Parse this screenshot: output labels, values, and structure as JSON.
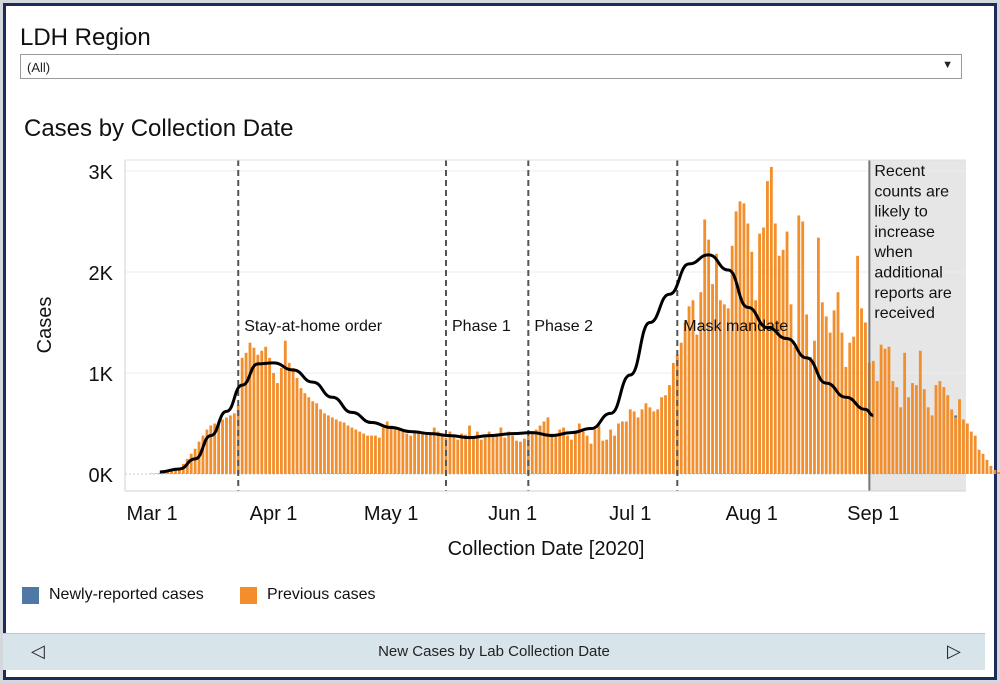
{
  "filter": {
    "title": "LDH Region",
    "value": "(All)"
  },
  "chart_title": "Cases by Collection Date",
  "legend": [
    {
      "label": "Newly-reported cases",
      "color": "#4e79a7"
    },
    {
      "label": "Previous cases",
      "color": "#f28e2b"
    }
  ],
  "footer": {
    "label": "New Cases by Lab Collection Date",
    "prev_icon": "triangle-left-icon",
    "next_icon": "triangle-right-icon"
  },
  "chart_data": {
    "type": "bar",
    "title": "Cases by Collection Date",
    "xlabel": "Collection Date [2020]",
    "ylabel": "Cases",
    "x_start": "2020-03-01",
    "x_end": "2020-09-30",
    "ylim": [
      0,
      3000
    ],
    "y_ticks": [
      0,
      1000,
      2000,
      3000
    ],
    "y_tick_labels": [
      "0K",
      "1K",
      "2K",
      "3K"
    ],
    "x_ticks": [
      {
        "date": "2020-03-01",
        "label": "Mar 1"
      },
      {
        "date": "2020-04-01",
        "label": "Apr 1"
      },
      {
        "date": "2020-05-01",
        "label": "May 1"
      },
      {
        "date": "2020-06-01",
        "label": "Jun 1"
      },
      {
        "date": "2020-07-01",
        "label": "Jul 1"
      },
      {
        "date": "2020-08-01",
        "label": "Aug 1"
      },
      {
        "date": "2020-09-01",
        "label": "Sep 1"
      }
    ],
    "grid": true,
    "colors": {
      "previous": "#f28e2b",
      "new": "#4e79a7",
      "average": "#000000",
      "recent_shade": "#e6e6e6",
      "phase_line": "#555555"
    },
    "annotations": [
      {
        "date": "2020-03-23",
        "label": "Stay-at-home order"
      },
      {
        "date": "2020-05-15",
        "label": "Phase 1"
      },
      {
        "date": "2020-06-05",
        "label": "Phase 2"
      },
      {
        "date": "2020-07-13",
        "label": "Mask mandate"
      }
    ],
    "recent_period": {
      "start": "2020-08-31",
      "label_lines": [
        "Recent",
        "counts are",
        "likely to",
        "increase",
        "when",
        "additional",
        "reports are",
        "received"
      ]
    },
    "first_date": "2020-03-01",
    "series": [
      {
        "name": "Previous cases",
        "values": [
          5,
          5,
          10,
          15,
          20,
          30,
          40,
          60,
          100,
          150,
          200,
          250,
          320,
          380,
          440,
          480,
          500,
          520,
          540,
          560,
          580,
          600,
          680,
          1150,
          1200,
          1300,
          1250,
          1180,
          1220,
          1260,
          1150,
          1000,
          900,
          1050,
          1320,
          1100,
          1050,
          950,
          850,
          800,
          760,
          720,
          700,
          640,
          600,
          580,
          560,
          540,
          520,
          510,
          480,
          460,
          440,
          420,
          400,
          380,
          380,
          380,
          360,
          460,
          520,
          480,
          450,
          440,
          420,
          400,
          380,
          420,
          430,
          400,
          390,
          400,
          460,
          420,
          380,
          360,
          420,
          380,
          340,
          400,
          390,
          480,
          360,
          420,
          340,
          380,
          420,
          390,
          400,
          460,
          360,
          420,
          380,
          330,
          320,
          350,
          380,
          400,
          440,
          480,
          520,
          560,
          400,
          380,
          440,
          460,
          380,
          340,
          420,
          500,
          420,
          380,
          300,
          440,
          480,
          330,
          340,
          440,
          380,
          500,
          520,
          520,
          640,
          620,
          560,
          640,
          700,
          660,
          620,
          640,
          760,
          780,
          880,
          1100,
          1180,
          1300,
          1500,
          1660,
          1720,
          1380,
          1800,
          2520,
          2320,
          1880,
          2180,
          1720,
          1680,
          1640,
          2260,
          2600,
          2700,
          2680,
          2480,
          2200,
          1720,
          2380,
          2440,
          2900,
          3040,
          2480,
          2160,
          2220,
          2400,
          1680,
          1260,
          2560,
          2500,
          1580,
          1160,
          1320,
          2340,
          1700,
          1560,
          1400,
          1620,
          1800,
          1400,
          1060,
          1300,
          1360,
          2160,
          1640,
          1500,
          1100,
          1120,
          920,
          1280,
          1240,
          1260,
          920,
          860,
          660,
          1200,
          760,
          900,
          880,
          1220,
          840,
          660,
          580,
          880,
          920,
          860,
          780,
          640,
          560,
          740,
          540,
          500,
          420,
          380,
          240,
          200,
          140,
          80,
          40,
          20
        ]
      },
      {
        "name": "Newly-reported cases",
        "values": [
          0,
          0,
          0,
          0,
          0,
          0,
          0,
          0,
          0,
          0,
          0,
          0,
          0,
          0,
          0,
          0,
          0,
          0,
          0,
          0,
          0,
          0,
          0,
          0,
          0,
          0,
          0,
          0,
          0,
          0,
          0,
          0,
          0,
          0,
          0,
          0,
          0,
          0,
          0,
          0,
          0,
          0,
          0,
          0,
          0,
          0,
          0,
          0,
          0,
          0,
          0,
          0,
          0,
          0,
          0,
          0,
          0,
          0,
          0,
          0,
          0,
          0,
          0,
          0,
          0,
          0,
          0,
          0,
          0,
          0,
          0,
          0,
          0,
          0,
          0,
          0,
          0,
          0,
          0,
          0,
          0,
          0,
          0,
          0,
          0,
          0,
          0,
          0,
          0,
          0,
          0,
          0,
          0,
          0,
          0,
          0,
          0,
          0,
          0,
          0,
          0,
          0,
          0,
          0,
          0,
          0,
          0,
          0,
          0,
          0,
          0,
          0,
          0,
          0,
          0,
          0,
          0,
          0,
          0,
          0,
          0,
          0,
          0,
          0,
          0,
          0,
          0,
          0,
          0,
          0,
          0,
          0,
          0,
          0,
          0,
          0,
          0,
          0,
          0,
          0,
          0,
          0,
          0,
          0,
          0,
          0,
          0,
          0,
          0,
          0,
          0,
          0,
          0,
          0,
          0,
          0,
          0,
          0,
          0,
          0,
          0,
          0,
          0,
          0,
          0,
          0,
          0,
          0,
          0,
          0,
          0,
          0,
          0,
          0,
          0,
          0,
          0,
          0,
          0,
          0,
          0,
          0,
          0,
          0,
          0,
          0,
          0,
          0,
          0,
          0,
          0,
          0,
          0,
          0,
          0,
          0,
          0,
          0,
          0,
          0,
          0,
          0,
          0,
          0,
          0,
          20,
          0,
          0,
          0,
          0,
          0,
          0,
          0,
          0,
          0,
          0,
          0,
          0,
          10,
          20,
          20,
          30,
          40,
          60,
          80,
          240,
          80
        ]
      }
    ],
    "average_line": {
      "name": "7-day average",
      "points": [
        {
          "date": "2020-03-03",
          "value": 20
        },
        {
          "date": "2020-03-08",
          "value": 50
        },
        {
          "date": "2020-03-12",
          "value": 150
        },
        {
          "date": "2020-03-16",
          "value": 380
        },
        {
          "date": "2020-03-20",
          "value": 620
        },
        {
          "date": "2020-03-24",
          "value": 880
        },
        {
          "date": "2020-03-28",
          "value": 1090
        },
        {
          "date": "2020-04-01",
          "value": 1100
        },
        {
          "date": "2020-04-06",
          "value": 1030
        },
        {
          "date": "2020-04-11",
          "value": 910
        },
        {
          "date": "2020-04-16",
          "value": 760
        },
        {
          "date": "2020-04-21",
          "value": 610
        },
        {
          "date": "2020-04-26",
          "value": 510
        },
        {
          "date": "2020-05-01",
          "value": 460
        },
        {
          "date": "2020-05-06",
          "value": 420
        },
        {
          "date": "2020-05-11",
          "value": 400
        },
        {
          "date": "2020-05-16",
          "value": 380
        },
        {
          "date": "2020-05-21",
          "value": 360
        },
        {
          "date": "2020-05-26",
          "value": 380
        },
        {
          "date": "2020-06-01",
          "value": 400
        },
        {
          "date": "2020-06-06",
          "value": 410
        },
        {
          "date": "2020-06-11",
          "value": 380
        },
        {
          "date": "2020-06-16",
          "value": 410
        },
        {
          "date": "2020-06-21",
          "value": 450
        },
        {
          "date": "2020-06-26",
          "value": 600
        },
        {
          "date": "2020-07-01",
          "value": 980
        },
        {
          "date": "2020-07-06",
          "value": 1500
        },
        {
          "date": "2020-07-11",
          "value": 1780
        },
        {
          "date": "2020-07-16",
          "value": 2080
        },
        {
          "date": "2020-07-21",
          "value": 2170
        },
        {
          "date": "2020-07-26",
          "value": 2020
        },
        {
          "date": "2020-07-31",
          "value": 1650
        },
        {
          "date": "2020-08-05",
          "value": 1450
        },
        {
          "date": "2020-08-10",
          "value": 1340
        },
        {
          "date": "2020-08-15",
          "value": 1150
        },
        {
          "date": "2020-08-20",
          "value": 900
        },
        {
          "date": "2020-08-25",
          "value": 760
        },
        {
          "date": "2020-08-30",
          "value": 640
        },
        {
          "date": "2020-09-01",
          "value": 580
        }
      ]
    }
  }
}
